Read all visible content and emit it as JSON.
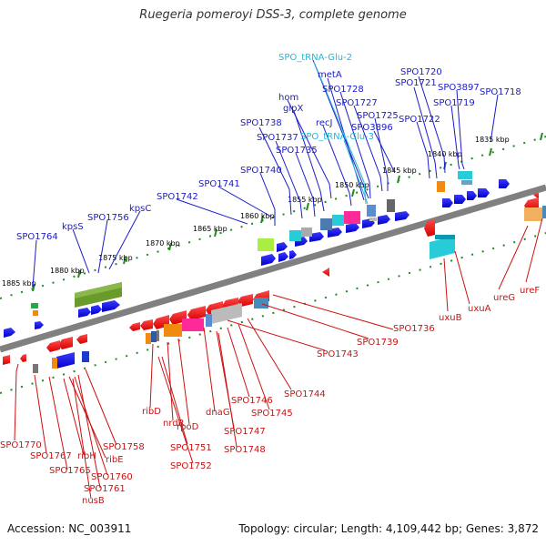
{
  "title": "Ruegeria pomeroyi DSS-3, complete genome",
  "footer": {
    "accession": "Accession: NC_003911",
    "topology": "Topology: circular; Length: 4,109,442 bp; Genes: 3,872"
  },
  "colors": {
    "forward_label": "#1a1acc",
    "reverse_label": "#cc1111",
    "rna_label": "#22b8d8",
    "backbone": "#808080",
    "track_dots": "#1f8a1f"
  },
  "scale_labels": [
    "1835 kbp",
    "1840 kbp",
    "1845 kbp",
    "1850 kbp",
    "1855 kbp",
    "1860 kbp",
    "1865 kbp",
    "1870 kbp",
    "1875 kbp",
    "1880 kbp",
    "1885 kbp"
  ],
  "top_labels": [
    {
      "text": "SPO_tRNA-Glu-2",
      "kind": "rna"
    },
    {
      "text": "metA",
      "kind": "fwd"
    },
    {
      "text": "SPO1720",
      "kind": "fwd"
    },
    {
      "text": "SPO1721",
      "kind": "fwd"
    },
    {
      "text": "SPO3897",
      "kind": "fwd"
    },
    {
      "text": "SPO1718",
      "kind": "fwd"
    },
    {
      "text": "hom",
      "kind": "fwd"
    },
    {
      "text": "SPO1728",
      "kind": "fwd"
    },
    {
      "text": "glpX",
      "kind": "fwd"
    },
    {
      "text": "SPO1727",
      "kind": "fwd"
    },
    {
      "text": "SPO1719",
      "kind": "fwd"
    },
    {
      "text": "SPO1725",
      "kind": "fwd"
    },
    {
      "text": "recJ",
      "kind": "fwd"
    },
    {
      "text": "SPO1738",
      "kind": "fwd"
    },
    {
      "text": "SPO3896",
      "kind": "fwd"
    },
    {
      "text": "SPO1722",
      "kind": "fwd"
    },
    {
      "text": "SPO1737",
      "kind": "fwd"
    },
    {
      "text": "SPO_tRNA-Glu-3",
      "kind": "rna"
    },
    {
      "text": "SPO1735",
      "kind": "fwd"
    },
    {
      "text": "SPO1740",
      "kind": "fwd"
    },
    {
      "text": "SPO1741",
      "kind": "fwd"
    },
    {
      "text": "SPO1742",
      "kind": "fwd"
    },
    {
      "text": "kpsS",
      "kind": "fwd"
    },
    {
      "text": "SPO1756",
      "kind": "fwd"
    },
    {
      "text": "kpsC",
      "kind": "fwd"
    },
    {
      "text": "SPO1764",
      "kind": "fwd"
    }
  ],
  "bottom_labels": [
    {
      "text": "uxuB"
    },
    {
      "text": "uxuA"
    },
    {
      "text": "ureG"
    },
    {
      "text": "ureF"
    },
    {
      "text": "SPO1736"
    },
    {
      "text": "SPO1739"
    },
    {
      "text": "SPO1743"
    },
    {
      "text": "SPO1744"
    },
    {
      "text": "SPO1746"
    },
    {
      "text": "SPO1745"
    },
    {
      "text": "SPO1747"
    },
    {
      "text": "SPO1748"
    },
    {
      "text": "dnaG"
    },
    {
      "text": "rpoD"
    },
    {
      "text": "nrdR"
    },
    {
      "text": "ribD"
    },
    {
      "text": "SPO1751"
    },
    {
      "text": "SPO1752"
    },
    {
      "text": "SPO1770"
    },
    {
      "text": "SPO1767"
    },
    {
      "text": "ribH"
    },
    {
      "text": "ribE"
    },
    {
      "text": "SPO1765"
    },
    {
      "text": "SPO1758"
    },
    {
      "text": "SPO1760"
    },
    {
      "text": "SPO1761"
    },
    {
      "text": "nusB"
    }
  ]
}
